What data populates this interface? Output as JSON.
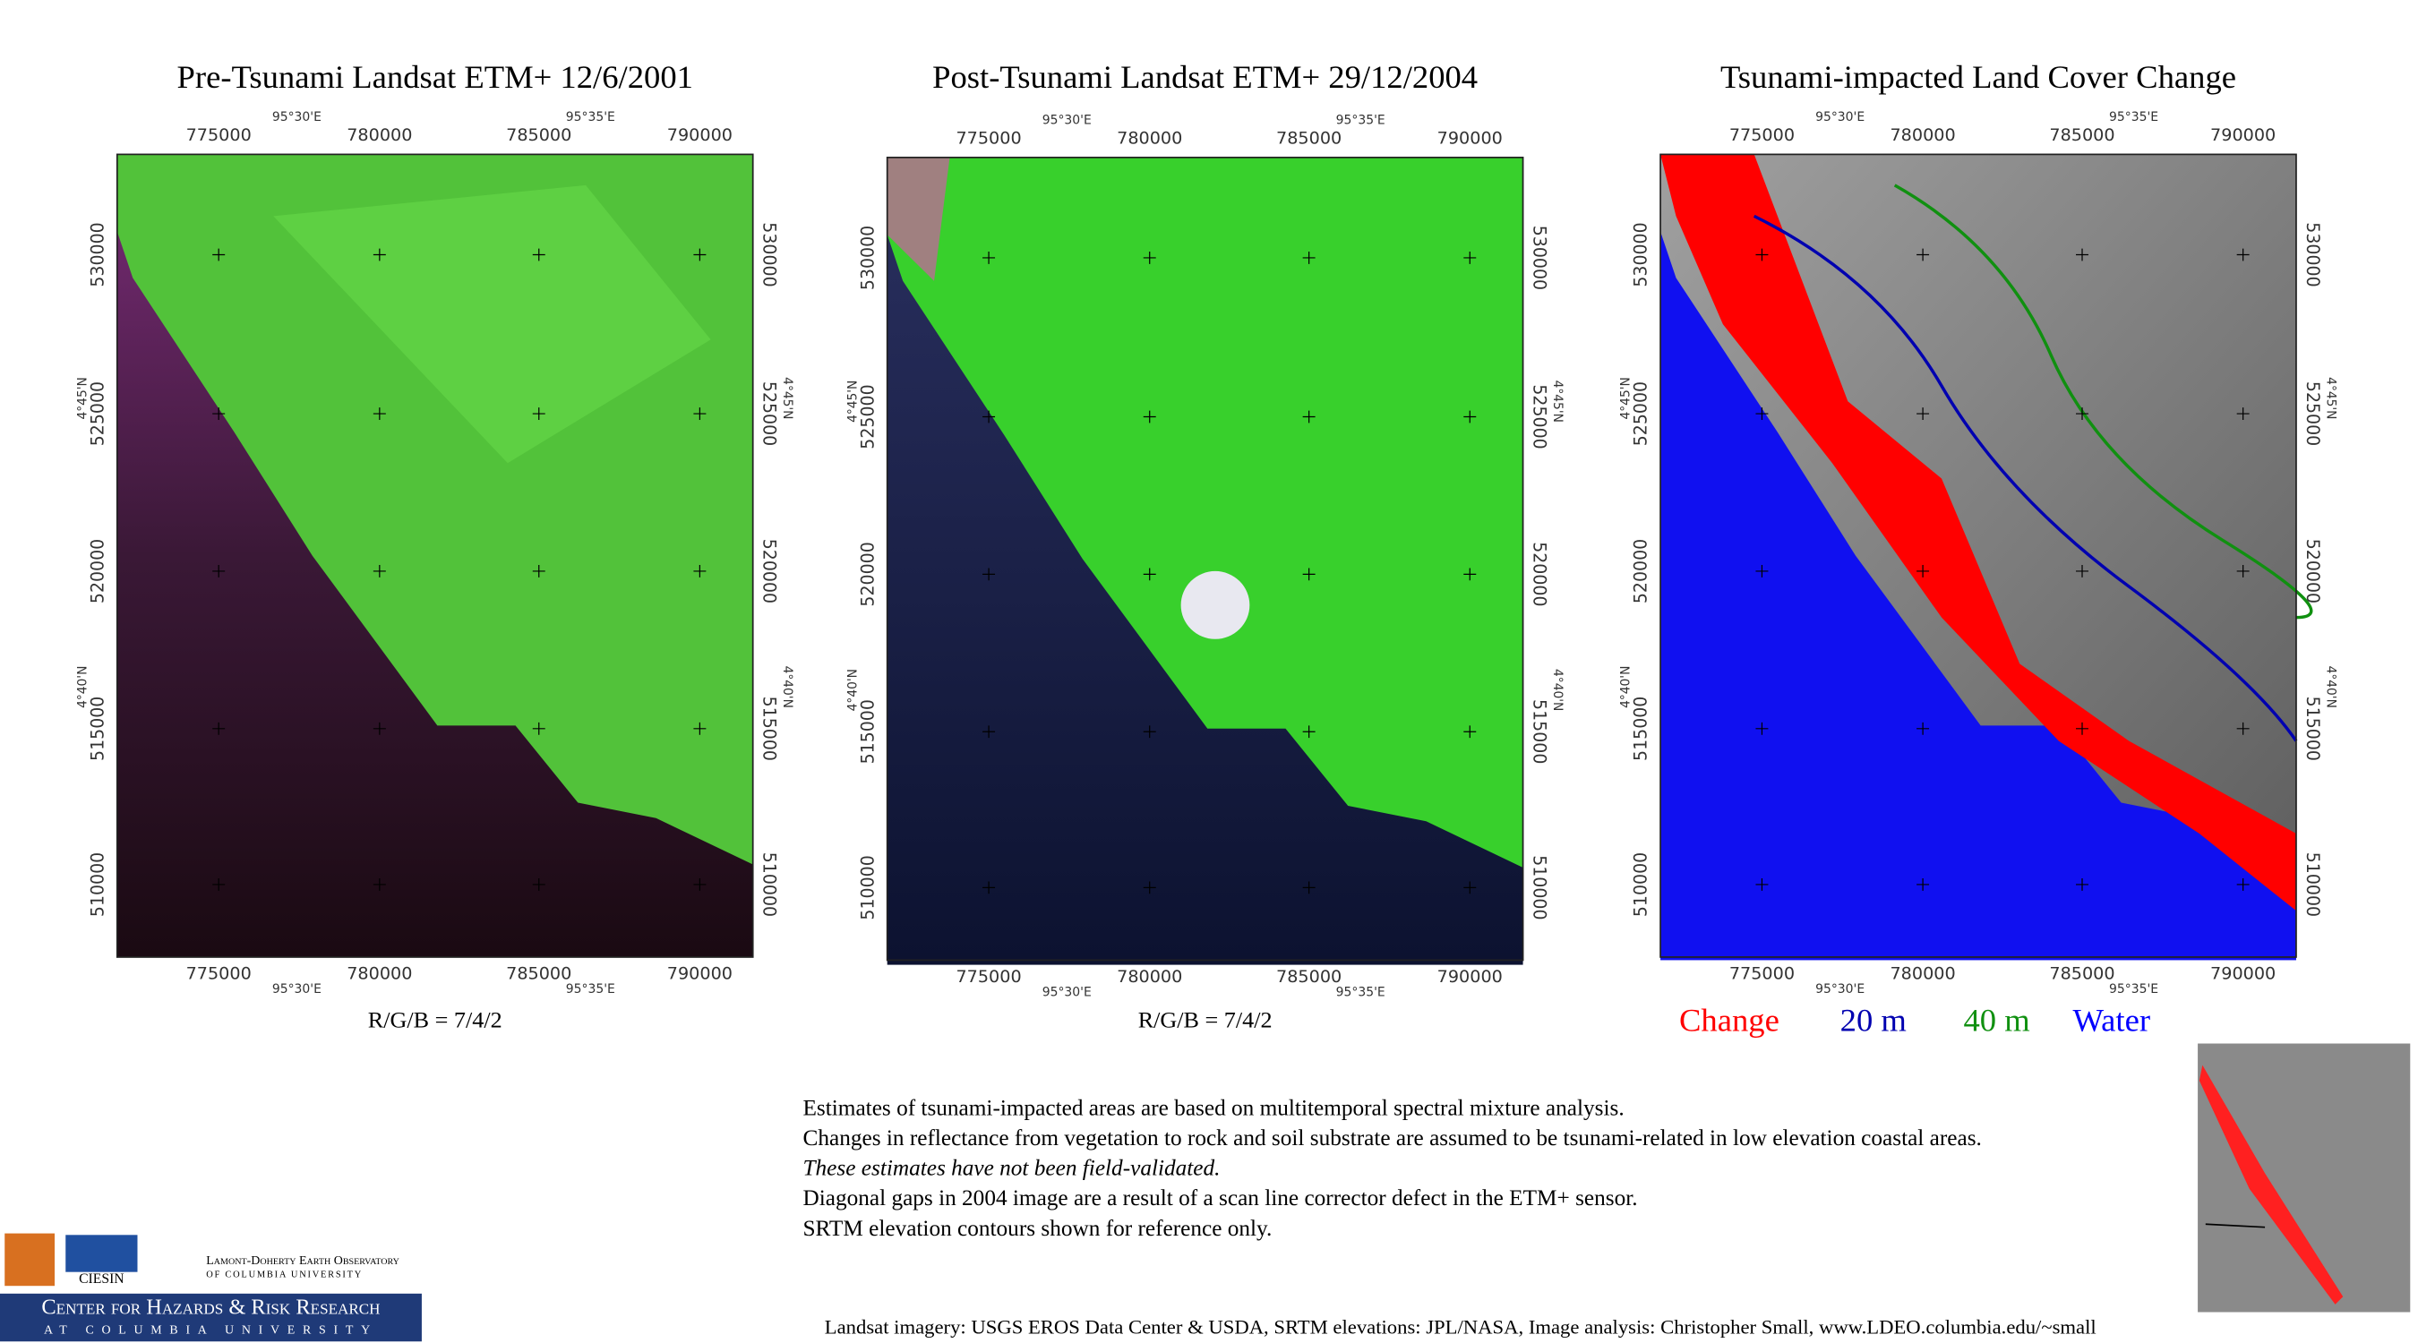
{
  "panels": [
    {
      "title": "Pre-Tsunami  Landsat ETM+    12/6/2001",
      "caption": "R/G/B = 7/4/2"
    },
    {
      "title": "Post-Tsunami  Landsat ETM+  29/12/2004",
      "caption": "R/G/B = 7/4/2"
    },
    {
      "title": "Tsunami-impacted Land Cover Change"
    }
  ],
  "grid": {
    "eastings": [
      "775000",
      "780000",
      "785000",
      "790000"
    ],
    "northings": [
      "530000",
      "525000",
      "520000",
      "515000",
      "510000"
    ],
    "longitudes": [
      "95°30'E",
      "95°35'E"
    ],
    "latitudes": [
      "4°45'N",
      "4°40'N"
    ]
  },
  "legend": [
    {
      "label": "Change",
      "color": "#ff0000"
    },
    {
      "label": "20 m",
      "color": "#0000b0"
    },
    {
      "label": "40 m",
      "color": "#109010"
    },
    {
      "label": "Water",
      "color": "#0000ff"
    }
  ],
  "notes": [
    "Estimates of tsunami-impacted areas are based on multitemporal spectral mixture analysis.",
    "Changes in reflectance from vegetation to rock and soil substrate are assumed to be tsunami-related in low elevation coastal areas.",
    "These estimates have not been field-validated.",
    "Diagonal gaps in 2004 image are a result of a scan line corrector defect in the ETM+ sensor.",
    "SRTM elevation contours shown for reference only."
  ],
  "credits": "Landsat imagery: USGS EROS Data Center & USDA,  SRTM elevations: JPL/NASA,   Image analysis:  Christopher Small,  www.LDEO.columbia.edu/~small",
  "logos": {
    "ciesin": "CIESIN",
    "ldeo": "Lamont-Doherty Earth Observatory",
    "ldeo_sub": "of Columbia University",
    "center": "Center for Hazards & Risk Research",
    "center_sub": "at Columbia University"
  }
}
